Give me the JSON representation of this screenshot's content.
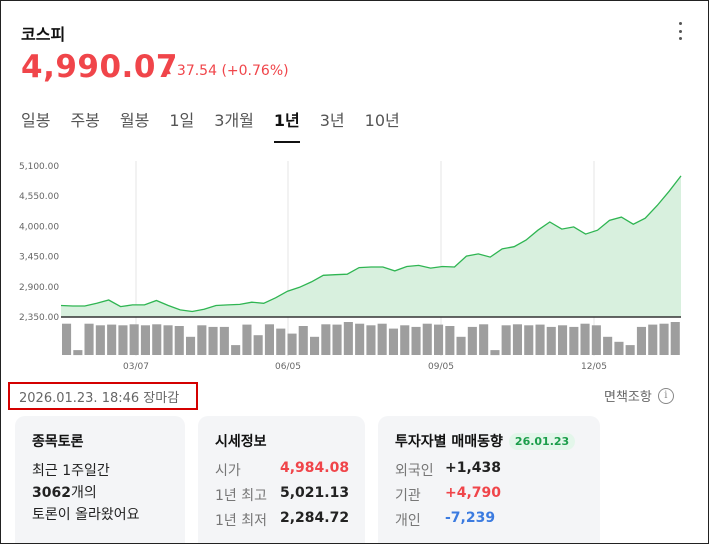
{
  "header": {
    "title": "코스피",
    "price": "4,990.07",
    "change": "37.54 (+0.76%)",
    "up_color": "#f0454a"
  },
  "tabs": [
    "일봉",
    "주봉",
    "월봉",
    "1일",
    "3개월",
    "1년",
    "3년",
    "10년"
  ],
  "active_tab": "1년",
  "chart_data": {
    "type": "area",
    "y_ticks": [
      "5,100.00",
      "4,550.00",
      "4,000.00",
      "3,450.00",
      "2,900.00",
      "2,350.00"
    ],
    "ylim": [
      2350,
      5100
    ],
    "x_ticks": [
      "03/07",
      "06/05",
      "09/05",
      "12/05"
    ],
    "series": [
      {
        "values": [
          2560,
          2550,
          2550,
          2600,
          2660,
          2540,
          2570,
          2570,
          2650,
          2560,
          2480,
          2450,
          2490,
          2560,
          2570,
          2580,
          2620,
          2600,
          2700,
          2820,
          2890,
          2990,
          3110,
          3120,
          3130,
          3250,
          3260,
          3260,
          3190,
          3270,
          3290,
          3240,
          3270,
          3260,
          3460,
          3500,
          3440,
          3590,
          3630,
          3750,
          3930,
          4080,
          3950,
          3990,
          3860,
          3930,
          4110,
          4170,
          4040,
          4150,
          4380,
          4640,
          4920
        ]
      }
    ],
    "volume": [
      0.95,
      0.15,
      0.95,
      0.9,
      0.92,
      0.9,
      0.93,
      0.9,
      0.93,
      0.9,
      0.88,
      0.55,
      0.9,
      0.85,
      0.85,
      0.3,
      0.92,
      0.6,
      0.93,
      0.8,
      0.65,
      0.88,
      0.55,
      0.93,
      0.92,
      1.0,
      0.95,
      0.9,
      0.95,
      0.8,
      0.9,
      0.85,
      0.95,
      0.92,
      0.88,
      0.55,
      0.85,
      0.93,
      0.15,
      0.9,
      0.93,
      0.9,
      0.92,
      0.85,
      0.9,
      0.85,
      0.95,
      0.9,
      0.55,
      0.4,
      0.3,
      0.85,
      0.92,
      0.95,
      1.0
    ],
    "grid": "vertical lines at x ticks"
  },
  "status": {
    "time": "2026.01.23. 18:46 장마감",
    "disclaimer": "면책조항"
  },
  "cards": {
    "discussion": {
      "title": "종목토론",
      "line1": "최근 1주일간",
      "count": "3062",
      "count_suffix": "개의",
      "line3": "토론이 올라왔어요"
    },
    "market": {
      "title": "시세정보",
      "open_label": "시가",
      "open": "4,984.08",
      "high_label": "1년 최고",
      "high": "5,021.13",
      "low_label": "1년 최저",
      "low": "2,284.72"
    },
    "investors": {
      "title": "투자자별 매매동향",
      "date": "26.01.23",
      "foreign_label": "외국인",
      "foreign": "+1,438",
      "inst_label": "기관",
      "inst": "+4,790",
      "indiv_label": "개인",
      "indiv": "-7,239"
    }
  }
}
